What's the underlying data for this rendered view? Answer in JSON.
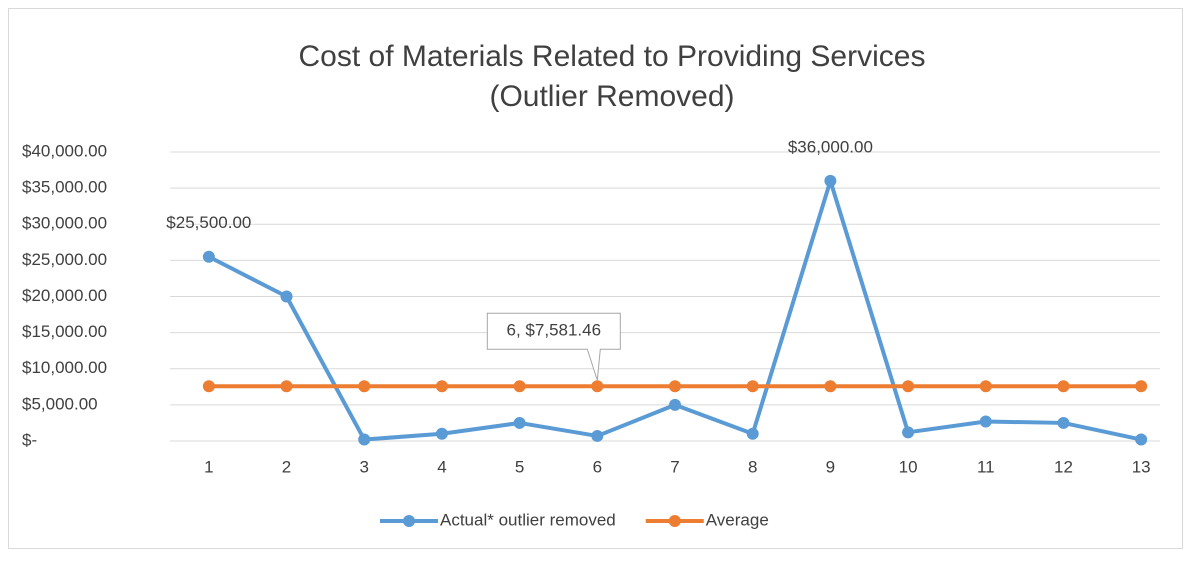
{
  "chart_data": {
    "type": "line",
    "title": "Cost of Materials Related to Providing Services",
    "subtitle": "(Outlier Removed)",
    "categories": [
      "1",
      "2",
      "3",
      "4",
      "5",
      "6",
      "7",
      "8",
      "9",
      "10",
      "11",
      "12",
      "13"
    ],
    "series": [
      {
        "name": "Actual* outlier removed",
        "color": "#5b9bd5",
        "values": [
          25500,
          20000,
          200,
          1000,
          2500,
          700,
          5000,
          1000,
          36000,
          1200,
          2700,
          2500,
          200
        ],
        "value_labels": [
          "$25,500.00",
          null,
          null,
          null,
          null,
          null,
          null,
          null,
          "$36,000.00",
          null,
          null,
          null,
          null
        ]
      },
      {
        "name": "Average",
        "color": "#ed7d31",
        "values": [
          7581.46,
          7581.46,
          7581.46,
          7581.46,
          7581.46,
          7581.46,
          7581.46,
          7581.46,
          7581.46,
          7581.46,
          7581.46,
          7581.46,
          7581.46
        ],
        "value_labels": [
          null,
          null,
          null,
          null,
          null,
          "6,  $7,581.46",
          null,
          null,
          null,
          null,
          null,
          null,
          null
        ]
      }
    ],
    "ylim": [
      0,
      40000
    ],
    "yticks": [
      {
        "value": 0,
        "label": "$-"
      },
      {
        "value": 5000,
        "label": "$5,000.00"
      },
      {
        "value": 10000,
        "label": "$10,000.00"
      },
      {
        "value": 15000,
        "label": "$15,000.00"
      },
      {
        "value": 20000,
        "label": "$20,000.00"
      },
      {
        "value": 25000,
        "label": "$25,000.00"
      },
      {
        "value": 30000,
        "label": "$30,000.00"
      },
      {
        "value": 35000,
        "label": "$35,000.00"
      },
      {
        "value": 40000,
        "label": "$40,000.00"
      }
    ],
    "grid": true,
    "legend": "bottom"
  }
}
